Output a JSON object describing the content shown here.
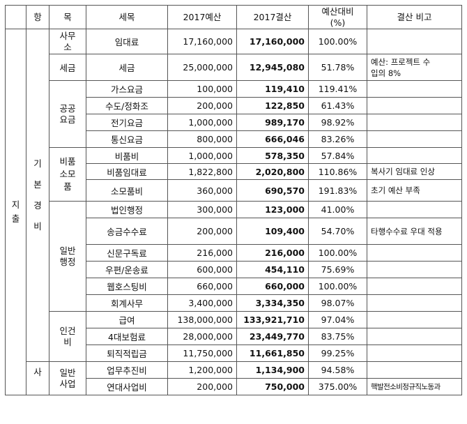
{
  "headers": {
    "hang": "항",
    "mok": "목",
    "semok": "세목",
    "budget": "2017예산",
    "actual": "2017결산",
    "ratio_line1": "예산대비",
    "ratio_line2": "(%)",
    "note": "결산 비고"
  },
  "section_label": "지출",
  "hang_groups": [
    {
      "label": "기본경비"
    },
    {
      "label": "사"
    }
  ],
  "mok_groups": [
    {
      "label": "사무소"
    },
    {
      "label": "세금"
    },
    {
      "label": "공공요금"
    },
    {
      "label": "비품소모품"
    },
    {
      "label": "일반행정"
    },
    {
      "label": "인건비"
    },
    {
      "label": "일반사업"
    }
  ],
  "rows": [
    {
      "item": "임대료",
      "budget": "17,160,000",
      "actual": "17,160,000",
      "ratio": "100.00%",
      "note": ""
    },
    {
      "item": "세금",
      "budget": "25,000,000",
      "actual": "12,945,080",
      "ratio": "51.78%",
      "note": "예산: 프로젝트 수입의 8%"
    },
    {
      "item": "가스요금",
      "budget": "100,000",
      "actual": "119,410",
      "ratio": "119.41%",
      "note": ""
    },
    {
      "item": "수도/정화조",
      "budget": "200,000",
      "actual": "122,850",
      "ratio": "61.43%",
      "note": ""
    },
    {
      "item": "전기요금",
      "budget": "1,000,000",
      "actual": "989,170",
      "ratio": "98.92%",
      "note": ""
    },
    {
      "item": "통신요금",
      "budget": "800,000",
      "actual": "666,046",
      "ratio": "83.26%",
      "note": ""
    },
    {
      "item": "비품비",
      "budget": "1,000,000",
      "actual": "578,350",
      "ratio": "57.84%",
      "note": ""
    },
    {
      "item": "비품임대료",
      "budget": "1,822,800",
      "actual": "2,020,800",
      "ratio": "110.86%",
      "note": "복사기 임대료 인상"
    },
    {
      "item": "소모품비",
      "budget": "360,000",
      "actual": "690,570",
      "ratio": "191.83%",
      "note": "초기 예산 부족"
    },
    {
      "item": "법인행정",
      "budget": "300,000",
      "actual": "123,000",
      "ratio": "41.00%",
      "note": ""
    },
    {
      "item": "송금수수료",
      "budget": "200,000",
      "actual": "109,400",
      "ratio": "54.70%",
      "note": "타행수수료 우대 적용"
    },
    {
      "item": "신문구독료",
      "budget": "216,000",
      "actual": "216,000",
      "ratio": "100.00%",
      "note": ""
    },
    {
      "item": "우편/운송료",
      "budget": "600,000",
      "actual": "454,110",
      "ratio": "75.69%",
      "note": ""
    },
    {
      "item": "웹호스팅비",
      "budget": "660,000",
      "actual": "660,000",
      "ratio": "100.00%",
      "note": ""
    },
    {
      "item": "회계사무",
      "budget": "3,400,000",
      "actual": "3,334,350",
      "ratio": "98.07%",
      "note": ""
    },
    {
      "item": "급여",
      "budget": "138,000,000",
      "actual": "133,921,710",
      "ratio": "97.04%",
      "note": ""
    },
    {
      "item": "4대보험료",
      "budget": "28,000,000",
      "actual": "23,449,770",
      "ratio": "83.75%",
      "note": ""
    },
    {
      "item": "퇴직적립금",
      "budget": "11,750,000",
      "actual": "11,661,850",
      "ratio": "99.25%",
      "note": ""
    },
    {
      "item": "업무추진비",
      "budget": "1,200,000",
      "actual": "1,134,900",
      "ratio": "94.58%",
      "note": ""
    },
    {
      "item": "연대사업비",
      "budget": "200,000",
      "actual": "750,000",
      "ratio": "375.00%",
      "note": "핵발전소비정규직노동과"
    }
  ]
}
